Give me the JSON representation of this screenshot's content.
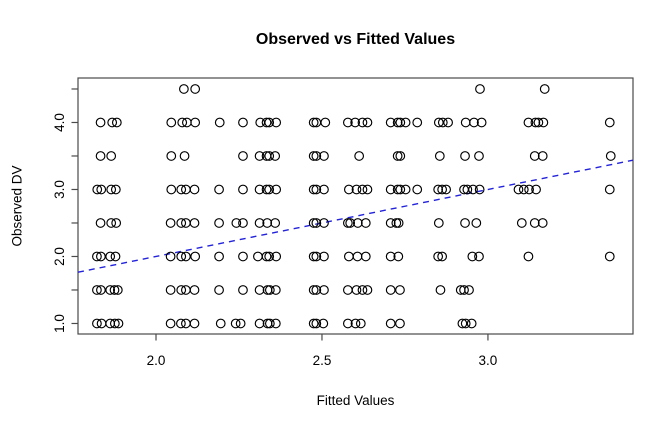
{
  "chart_data": {
    "type": "scatter",
    "title": "Observed vs Fitted Values",
    "xlabel": "Fitted Values",
    "ylabel": "Observed DV",
    "xlim": [
      1.765,
      3.437
    ],
    "ylim": [
      0.843,
      4.664
    ],
    "x_ticks": [
      2.0,
      2.5,
      3.0
    ],
    "y_ticks_all": [
      1.0,
      1.5,
      2.0,
      2.5,
      3.0,
      3.5,
      4.0,
      4.5
    ],
    "y_ticks_labeled": [
      1.0,
      2.0,
      3.0,
      4.0
    ],
    "grid": false,
    "legend": false,
    "marker": "open-circle",
    "marker_color": "#000000",
    "marker_radius_px": 4.3,
    "axis_color": "#4a4a4a",
    "reference_line": {
      "style": "dashed",
      "color": "#2222dd",
      "slope": 1,
      "intercept": 0,
      "description": "identity line y = x"
    },
    "points_by_row": [
      {
        "y": 4.5,
        "x": [
          2.084,
          2.118,
          2.976,
          3.171
        ]
      },
      {
        "y": 4.0,
        "x": [
          1.833,
          1.868,
          1.882,
          2.046,
          2.079,
          2.093,
          2.118,
          2.192,
          2.262,
          2.314,
          2.333,
          2.341,
          2.362,
          2.475,
          2.483,
          2.51,
          2.578,
          2.6,
          2.622,
          2.637,
          2.707,
          2.728,
          2.736,
          2.752,
          2.787,
          2.852,
          2.864,
          2.88,
          2.933,
          2.958,
          2.981,
          3.122,
          3.143,
          3.152,
          3.167,
          3.367
        ]
      },
      {
        "y": 3.5,
        "x": [
          1.833,
          1.865,
          2.046,
          2.086,
          2.262,
          2.312,
          2.333,
          2.341,
          2.359,
          2.475,
          2.483,
          2.506,
          2.612,
          2.728,
          2.736,
          2.855,
          2.931,
          2.973,
          3.141,
          3.165,
          3.37
        ]
      },
      {
        "y": 3.0,
        "x": [
          1.823,
          1.835,
          1.865,
          1.879,
          2.046,
          2.076,
          2.09,
          2.116,
          2.19,
          2.262,
          2.312,
          2.333,
          2.341,
          2.362,
          2.475,
          2.483,
          2.506,
          2.581,
          2.604,
          2.622,
          2.637,
          2.707,
          2.728,
          2.736,
          2.752,
          2.787,
          2.85,
          2.862,
          2.874,
          2.928,
          2.938,
          2.955,
          2.975,
          3.092,
          3.108,
          3.124,
          3.145,
          3.367
        ]
      },
      {
        "y": 2.5,
        "x": [
          1.833,
          1.865,
          1.88,
          2.044,
          2.076,
          2.09,
          2.116,
          2.19,
          2.242,
          2.262,
          2.312,
          2.335,
          2.359,
          2.475,
          2.483,
          2.506,
          2.578,
          2.585,
          2.608,
          2.632,
          2.707,
          2.724,
          2.731,
          2.852,
          2.931,
          2.965,
          3.102,
          3.141,
          3.165
        ]
      },
      {
        "y": 2.0,
        "x": [
          1.822,
          1.834,
          1.862,
          1.878,
          2.044,
          2.076,
          2.09,
          2.118,
          2.19,
          2.262,
          2.307,
          2.333,
          2.341,
          2.362,
          2.475,
          2.483,
          2.506,
          2.581,
          2.607,
          2.632,
          2.707,
          2.73,
          2.85,
          2.862,
          2.953,
          2.973,
          3.122,
          3.367
        ]
      },
      {
        "y": 1.5,
        "x": [
          1.822,
          1.834,
          1.862,
          1.875,
          1.885,
          2.044,
          2.076,
          2.09,
          2.116,
          2.19,
          2.262,
          2.312,
          2.336,
          2.343,
          2.361,
          2.475,
          2.483,
          2.506,
          2.578,
          2.604,
          2.622,
          2.637,
          2.707,
          2.735,
          2.857,
          2.918,
          2.928,
          2.943
        ]
      },
      {
        "y": 1.0,
        "x": [
          1.822,
          1.836,
          1.862,
          1.876,
          1.887,
          2.044,
          2.075,
          2.09,
          2.116,
          2.195,
          2.24,
          2.255,
          2.312,
          2.336,
          2.343,
          2.361,
          2.475,
          2.483,
          2.504,
          2.578,
          2.601,
          2.617,
          2.707,
          2.735,
          2.923,
          2.933,
          2.951
        ]
      }
    ]
  },
  "tick_label_format": {
    "decimals": 1
  }
}
